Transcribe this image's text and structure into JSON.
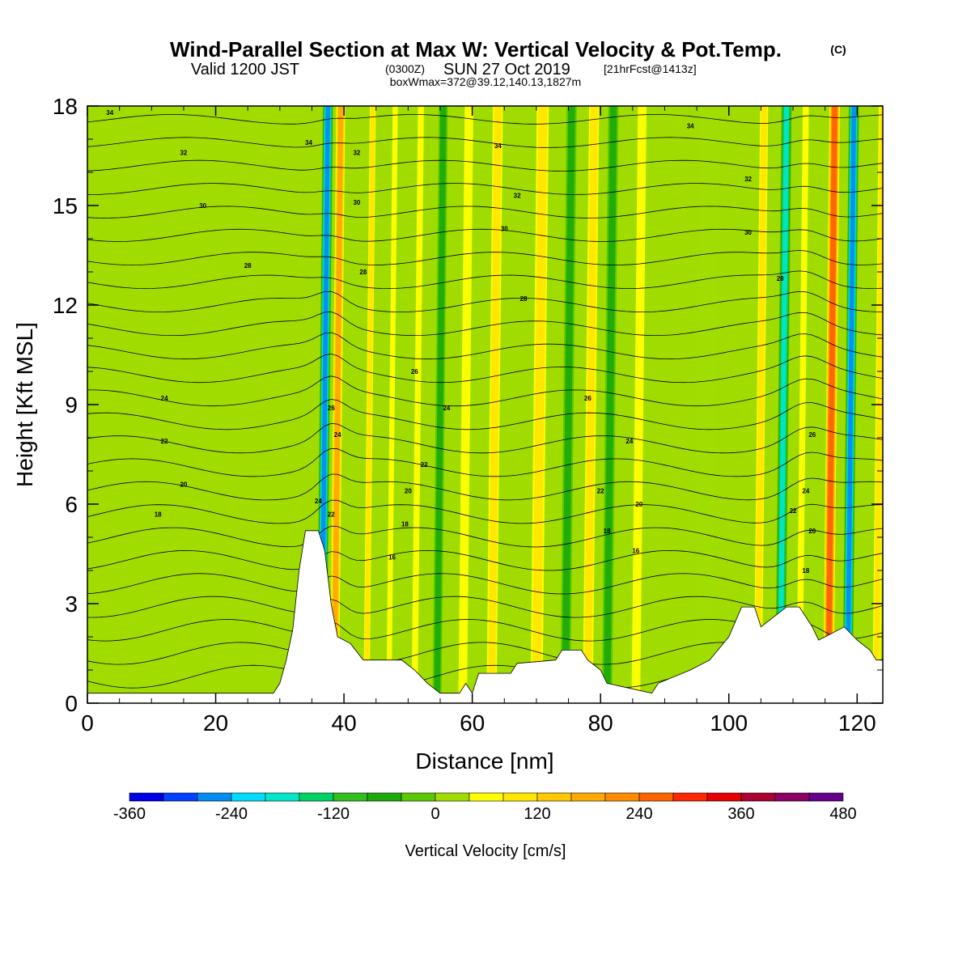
{
  "chart_data": {
    "type": "heatmap",
    "title": "Wind-Parallel Section at Max W: Vertical Velocity & Pot.Temp.",
    "title_units": "(C)",
    "subtitle_main": "Valid 1200 JST",
    "subtitle_utc": "(0300Z)",
    "subtitle_date": "SUN 27 Oct 2019",
    "subtitle_run": "[21hrFcst@1413z]",
    "info_line": "boxWmax=372@39.12,140.13,1827m",
    "xlabel": "Distance [nm]",
    "ylabel": "Height [Kft MSL]",
    "xlim": [
      0,
      124
    ],
    "ylim": [
      0,
      18
    ],
    "x_ticks": [
      "0",
      "20",
      "40",
      "60",
      "80",
      "100",
      "120"
    ],
    "x_tick_values": [
      0,
      20,
      40,
      60,
      80,
      100,
      120
    ],
    "y_ticks": [
      "0",
      "3",
      "6",
      "9",
      "12",
      "15",
      "18"
    ],
    "y_tick_values": [
      0,
      3,
      6,
      9,
      12,
      15,
      18
    ],
    "colorbar": {
      "label": "Vertical Velocity [cm/s]",
      "min": -360,
      "max": 480,
      "step": 40,
      "tick_labels": [
        "-360",
        "-240",
        "-120",
        "0",
        "120",
        "240",
        "360",
        "480"
      ],
      "tick_values": [
        -360,
        -240,
        -120,
        0,
        120,
        240,
        360,
        480
      ],
      "colors": [
        "#0000e6",
        "#0042ff",
        "#008cf0",
        "#00dcff",
        "#00e6c8",
        "#00d264",
        "#32be1e",
        "#1eaa0a",
        "#5ac800",
        "#a0dc00",
        "#ffff00",
        "#ffe600",
        "#ffc800",
        "#ffaa00",
        "#ff8c00",
        "#ff6400",
        "#ff2800",
        "#e60000",
        "#aa0032",
        "#8c0064",
        "#64008c"
      ]
    },
    "vertical_velocity_bands": [
      {
        "x": 38.5,
        "w": 200,
        "width_nm": 1.6
      },
      {
        "x": 36.5,
        "w": -280,
        "width_nm": 1.6
      },
      {
        "x": 43.5,
        "w": 100,
        "width_nm": 1.2
      },
      {
        "x": 47.0,
        "w": 80,
        "width_nm": 1.2
      },
      {
        "x": 51.0,
        "w": 60,
        "width_nm": 1.4
      },
      {
        "x": 54.5,
        "w": -60,
        "width_nm": 1.4
      },
      {
        "x": 58.5,
        "w": 80,
        "width_nm": 2.0
      },
      {
        "x": 63.0,
        "w": 100,
        "width_nm": 2.0
      },
      {
        "x": 70.0,
        "w": 100,
        "width_nm": 2.4
      },
      {
        "x": 74.5,
        "w": -80,
        "width_nm": 1.6
      },
      {
        "x": 78.0,
        "w": 120,
        "width_nm": 2.0
      },
      {
        "x": 81.0,
        "w": -60,
        "width_nm": 1.6
      },
      {
        "x": 85.5,
        "w": 60,
        "width_nm": 2.0
      },
      {
        "x": 96.0,
        "w": 40,
        "width_nm": 3.0
      },
      {
        "x": 104.5,
        "w": 100,
        "width_nm": 1.6
      },
      {
        "x": 108.0,
        "w": -200,
        "width_nm": 1.6
      },
      {
        "x": 111.0,
        "w": 80,
        "width_nm": 1.4
      },
      {
        "x": 115.5,
        "w": 280,
        "width_nm": 1.8
      },
      {
        "x": 118.5,
        "w": -260,
        "width_nm": 1.6
      },
      {
        "x": 123.0,
        "w": 100,
        "width_nm": 1.6
      }
    ],
    "theta_contour_labels": [
      {
        "text": "34",
        "x": 3.5,
        "y": 17.8
      },
      {
        "text": "32",
        "x": 15.0,
        "y": 16.6
      },
      {
        "text": "30",
        "x": 18.0,
        "y": 15.0
      },
      {
        "text": "28",
        "x": 25.0,
        "y": 13.2
      },
      {
        "text": "24",
        "x": 12.0,
        "y": 9.2
      },
      {
        "text": "22",
        "x": 12.0,
        "y": 7.9
      },
      {
        "text": "20",
        "x": 15.0,
        "y": 6.6
      },
      {
        "text": "18",
        "x": 11.0,
        "y": 5.7
      },
      {
        "text": "34",
        "x": 34.5,
        "y": 16.9
      },
      {
        "text": "26",
        "x": 38.0,
        "y": 8.9
      },
      {
        "text": "24",
        "x": 36.0,
        "y": 6.1
      },
      {
        "text": "22",
        "x": 38.0,
        "y": 5.7
      },
      {
        "text": "24",
        "x": 39.0,
        "y": 8.1
      },
      {
        "text": "32",
        "x": 42.0,
        "y": 16.6
      },
      {
        "text": "30",
        "x": 42.0,
        "y": 15.1
      },
      {
        "text": "28",
        "x": 43.0,
        "y": 13.0
      },
      {
        "text": "34",
        "x": 64.0,
        "y": 16.8
      },
      {
        "text": "32",
        "x": 67.0,
        "y": 15.3
      },
      {
        "text": "30",
        "x": 65.0,
        "y": 14.3
      },
      {
        "text": "28",
        "x": 68.0,
        "y": 12.2
      },
      {
        "text": "26",
        "x": 51.0,
        "y": 10.0
      },
      {
        "text": "24",
        "x": 56.0,
        "y": 8.9
      },
      {
        "text": "22",
        "x": 52.5,
        "y": 7.2
      },
      {
        "text": "20",
        "x": 50.0,
        "y": 6.4
      },
      {
        "text": "18",
        "x": 49.5,
        "y": 5.4
      },
      {
        "text": "16",
        "x": 47.5,
        "y": 4.4
      },
      {
        "text": "34",
        "x": 94.0,
        "y": 17.4
      },
      {
        "text": "32",
        "x": 103.0,
        "y": 15.8
      },
      {
        "text": "30",
        "x": 103.0,
        "y": 14.2
      },
      {
        "text": "28",
        "x": 108.0,
        "y": 12.8
      },
      {
        "text": "26",
        "x": 78.0,
        "y": 9.2
      },
      {
        "text": "24",
        "x": 84.5,
        "y": 7.9
      },
      {
        "text": "22",
        "x": 80.0,
        "y": 6.4
      },
      {
        "text": "20",
        "x": 86.0,
        "y": 6.0
      },
      {
        "text": "18",
        "x": 81.0,
        "y": 5.2
      },
      {
        "text": "16",
        "x": 85.5,
        "y": 4.6
      },
      {
        "text": "26",
        "x": 113.0,
        "y": 8.1
      },
      {
        "text": "24",
        "x": 112.0,
        "y": 6.4
      },
      {
        "text": "22",
        "x": 110.0,
        "y": 5.8
      },
      {
        "text": "20",
        "x": 113.0,
        "y": 5.2
      },
      {
        "text": "18",
        "x": 112.0,
        "y": 4.0
      }
    ],
    "terrain_height_kft": [
      {
        "x": 0,
        "y": 0.3
      },
      {
        "x": 29,
        "y": 0.3
      },
      {
        "x": 30,
        "y": 0.6
      },
      {
        "x": 31,
        "y": 1.3
      },
      {
        "x": 32,
        "y": 2.2
      },
      {
        "x": 33,
        "y": 4.0
      },
      {
        "x": 34,
        "y": 5.2
      },
      {
        "x": 36,
        "y": 5.2
      },
      {
        "x": 37,
        "y": 4.6
      },
      {
        "x": 38,
        "y": 3.0
      },
      {
        "x": 39,
        "y": 2.0
      },
      {
        "x": 41,
        "y": 1.8
      },
      {
        "x": 43,
        "y": 1.3
      },
      {
        "x": 44,
        "y": 1.3
      },
      {
        "x": 45,
        "y": 1.3
      },
      {
        "x": 49,
        "y": 1.3
      },
      {
        "x": 51,
        "y": 1.0
      },
      {
        "x": 53,
        "y": 0.6
      },
      {
        "x": 55,
        "y": 0.3
      },
      {
        "x": 58,
        "y": 0.3
      },
      {
        "x": 59,
        "y": 0.6
      },
      {
        "x": 60,
        "y": 0.3
      },
      {
        "x": 61,
        "y": 0.9
      },
      {
        "x": 66,
        "y": 0.9
      },
      {
        "x": 67,
        "y": 1.2
      },
      {
        "x": 73,
        "y": 1.3
      },
      {
        "x": 74,
        "y": 1.6
      },
      {
        "x": 77,
        "y": 1.6
      },
      {
        "x": 78,
        "y": 1.3
      },
      {
        "x": 80,
        "y": 1.0
      },
      {
        "x": 81,
        "y": 0.6
      },
      {
        "x": 88,
        "y": 0.3
      },
      {
        "x": 89,
        "y": 0.6
      },
      {
        "x": 94,
        "y": 1.0
      },
      {
        "x": 97,
        "y": 1.3
      },
      {
        "x": 100,
        "y": 2.0
      },
      {
        "x": 102,
        "y": 2.9
      },
      {
        "x": 104,
        "y": 2.9
      },
      {
        "x": 105,
        "y": 2.3
      },
      {
        "x": 109,
        "y": 2.9
      },
      {
        "x": 111,
        "y": 2.9
      },
      {
        "x": 113,
        "y": 2.3
      },
      {
        "x": 114,
        "y": 1.9
      },
      {
        "x": 118,
        "y": 2.3
      },
      {
        "x": 120,
        "y": 1.9
      },
      {
        "x": 122,
        "y": 1.6
      },
      {
        "x": 123,
        "y": 1.3
      },
      {
        "x": 124,
        "y": 1.3
      }
    ]
  }
}
